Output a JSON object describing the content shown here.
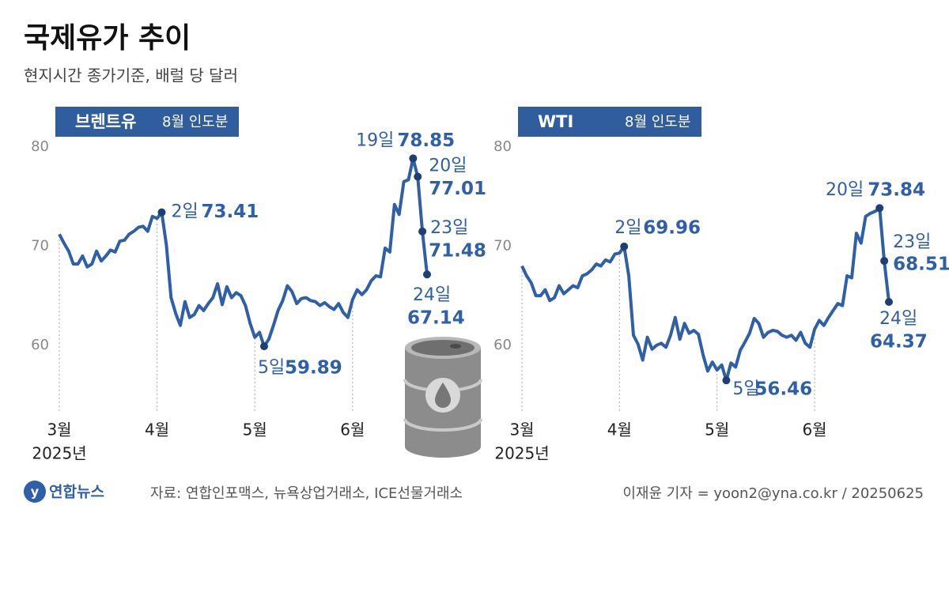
{
  "title": "국제유가 추이",
  "subtitle": "현지시간 종가기준, 배럴 당 달러",
  "logo": "연합뉴스",
  "source": "자료: 연합인포맥스, 뉴욕상업거래소, ICE선물거래소",
  "credit": "이재윤 기자 = yoon2@yna.co.kr / 20250625",
  "chart_data": [
    {
      "type": "line",
      "title": "브렌트유",
      "subtitle": "8월 인도분",
      "color": "#2f5fa6",
      "categories": [
        "3월",
        null,
        null,
        null,
        null,
        null,
        null,
        null,
        null,
        null,
        null,
        null,
        null,
        null,
        null,
        null,
        null,
        null,
        null,
        null,
        null,
        "4월",
        null,
        null,
        null,
        null,
        null,
        null,
        null,
        null,
        null,
        null,
        null,
        null,
        null,
        null,
        null,
        null,
        null,
        null,
        null,
        null,
        "5월",
        null,
        null,
        null,
        null,
        null,
        null,
        null,
        null,
        null,
        null,
        null,
        null,
        null,
        null,
        null,
        null,
        null,
        null,
        null,
        null,
        "6월",
        null,
        null,
        null,
        null,
        null,
        null,
        null,
        null,
        null,
        null,
        null,
        null,
        null,
        null,
        null,
        null
      ],
      "year_label": "2025년",
      "values": [
        71.2,
        70.3,
        69.5,
        68.2,
        68.2,
        69.0,
        67.9,
        68.2,
        69.5,
        68.5,
        69.0,
        69.6,
        69.4,
        70.5,
        70.6,
        71.2,
        71.5,
        71.9,
        72.0,
        71.5,
        73.0,
        72.8,
        73.41,
        70.1,
        64.8,
        63.2,
        62.0,
        64.4,
        62.8,
        63.1,
        64.0,
        63.5,
        64.2,
        64.8,
        66.2,
        64.1,
        65.9,
        64.8,
        65.3,
        65.0,
        64.0,
        62.2,
        60.8,
        61.3,
        59.89,
        60.6,
        62.0,
        63.5,
        64.5,
        66.0,
        65.4,
        64.2,
        64.7,
        64.8,
        64.5,
        64.4,
        64.0,
        64.3,
        63.9,
        63.6,
        64.2,
        63.3,
        62.8,
        64.6,
        65.6,
        65.1,
        65.6,
        66.5,
        67.0,
        66.9,
        69.8,
        69.4,
        74.2,
        73.2,
        76.5,
        76.7,
        78.85,
        77.01,
        71.48,
        67.14
      ],
      "day_labels": [
        null,
        null,
        null,
        null,
        null,
        null,
        null,
        null,
        null,
        null,
        null,
        null,
        null,
        null,
        null,
        null,
        null,
        null,
        null,
        null,
        null,
        null,
        "2일",
        null,
        null,
        null,
        null,
        null,
        null,
        null,
        null,
        null,
        null,
        null,
        null,
        null,
        null,
        null,
        null,
        null,
        null,
        null,
        null,
        null,
        "5일",
        null,
        null,
        null,
        null,
        null,
        null,
        null,
        null,
        null,
        null,
        null,
        null,
        null,
        null,
        null,
        null,
        null,
        null,
        null,
        null,
        null,
        null,
        null,
        null,
        null,
        null,
        null,
        null,
        null,
        null,
        null,
        "19일",
        "20일",
        "23일",
        "24일"
      ],
      "ylim": [
        54,
        80
      ],
      "yticks": [
        60,
        70,
        80
      ],
      "grid": false
    },
    {
      "type": "line",
      "title": "WTI",
      "subtitle": "8월 인도분",
      "color": "#2f5fa6",
      "categories": [
        "3월",
        null,
        null,
        null,
        null,
        null,
        null,
        null,
        null,
        null,
        null,
        null,
        null,
        null,
        null,
        null,
        null,
        null,
        null,
        null,
        null,
        "4월",
        null,
        null,
        null,
        null,
        null,
        null,
        null,
        null,
        null,
        null,
        null,
        null,
        null,
        null,
        null,
        null,
        null,
        null,
        null,
        null,
        "5월",
        null,
        null,
        null,
        null,
        null,
        null,
        null,
        null,
        null,
        null,
        null,
        null,
        null,
        null,
        null,
        null,
        null,
        null,
        null,
        null,
        "6월",
        null,
        null,
        null,
        null,
        null,
        null,
        null,
        null,
        null,
        null,
        null,
        null,
        null,
        null,
        null,
        null
      ],
      "year_label": "2025년",
      "values": [
        68.0,
        67.0,
        66.3,
        65.0,
        65.0,
        65.6,
        64.5,
        64.8,
        66.0,
        65.2,
        65.6,
        66.0,
        65.8,
        67.0,
        67.2,
        67.6,
        68.2,
        68.0,
        68.6,
        68.4,
        69.2,
        69.3,
        69.96,
        67.0,
        61.0,
        60.1,
        58.5,
        60.8,
        59.6,
        60.0,
        60.2,
        59.8,
        61.0,
        62.8,
        60.6,
        62.2,
        61.2,
        61.5,
        61.1,
        59.0,
        57.4,
        58.3,
        57.5,
        58.0,
        56.46,
        58.2,
        57.8,
        59.5,
        60.3,
        61.2,
        62.7,
        62.2,
        60.8,
        61.3,
        61.5,
        61.4,
        61.0,
        60.8,
        61.0,
        60.5,
        61.3,
        60.2,
        59.8,
        61.6,
        62.5,
        62.0,
        62.8,
        63.5,
        64.2,
        64.0,
        67.0,
        66.8,
        71.3,
        70.3,
        73.0,
        73.3,
        73.5,
        73.84,
        68.51,
        64.37
      ],
      "day_labels": [
        null,
        null,
        null,
        null,
        null,
        null,
        null,
        null,
        null,
        null,
        null,
        null,
        null,
        null,
        null,
        null,
        null,
        null,
        null,
        null,
        null,
        null,
        "2일",
        null,
        null,
        null,
        null,
        null,
        null,
        null,
        null,
        null,
        null,
        null,
        null,
        null,
        null,
        null,
        null,
        null,
        null,
        null,
        null,
        null,
        "5일",
        null,
        null,
        null,
        null,
        null,
        null,
        null,
        null,
        null,
        null,
        null,
        null,
        null,
        null,
        null,
        null,
        null,
        null,
        null,
        null,
        null,
        null,
        null,
        null,
        null,
        null,
        null,
        null,
        null,
        null,
        null,
        null,
        "20일",
        "23일",
        "24일"
      ],
      "ylim": [
        54,
        80
      ],
      "yticks": [
        60,
        70,
        80
      ],
      "grid": false
    }
  ]
}
